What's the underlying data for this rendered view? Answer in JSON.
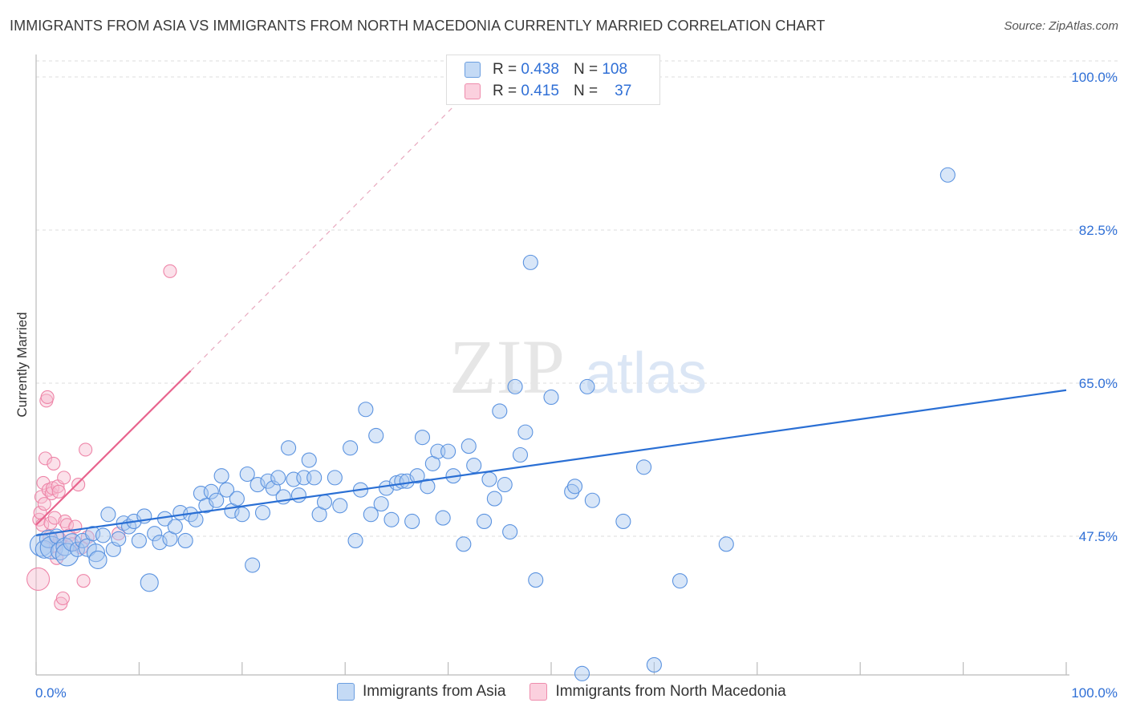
{
  "header": {
    "title": "IMMIGRANTS FROM ASIA VS IMMIGRANTS FROM NORTH MACEDONIA CURRENTLY MARRIED CORRELATION CHART",
    "source": "Source: ZipAtlas.com"
  },
  "watermark": {
    "zip": "ZIP",
    "atlas": "atlas"
  },
  "legend_top": {
    "rows": [
      {
        "r_label": "R =",
        "r_value": "0.438",
        "n_label": "N =",
        "n_value": "108"
      },
      {
        "r_label": "R =",
        "r_value": "0.415",
        "n_label": "N =",
        "n_value": "37"
      }
    ]
  },
  "colors": {
    "asia_fill": "#a9c8f0",
    "asia_stroke": "#5b93e0",
    "asia_line": "#2a6fd4",
    "mk_fill": "#f7bcd0",
    "mk_stroke": "#ee85a8",
    "mk_line": "#e8648e",
    "axis_value": "#2f6fd6",
    "grid": "#dddddd"
  },
  "chart_data": {
    "type": "scatter",
    "title": "IMMIGRANTS FROM ASIA VS IMMIGRANTS FROM NORTH MACEDONIA CURRENTLY MARRIED CORRELATION CHART",
    "xlabel": "",
    "ylabel": "Currently Married",
    "xlim": [
      0,
      100
    ],
    "ylim": [
      33,
      102
    ],
    "x_tick_labels": [
      "0.0%",
      "100.0%"
    ],
    "y_ticks": [
      47.5,
      65.0,
      82.5,
      100.0
    ],
    "y_tick_labels": [
      "47.5%",
      "65.0%",
      "82.5%",
      "100.0%"
    ],
    "grid": true,
    "legend_placement": "bottom-center",
    "series": [
      {
        "name": "Immigrants from Asia",
        "color": "#5b93e0",
        "r": 0.438,
        "n": 108,
        "trend": {
          "x": [
            0,
            100
          ],
          "y": [
            47.6,
            64.2
          ]
        },
        "points": [
          {
            "x": 0.5,
            "y": 46.5,
            "s": 3
          },
          {
            "x": 0.8,
            "y": 46.0,
            "s": 2
          },
          {
            "x": 1.2,
            "y": 47.2,
            "s": 2
          },
          {
            "x": 1.5,
            "y": 46.2,
            "s": 3
          },
          {
            "x": 2.0,
            "y": 47.5,
            "s": 1
          },
          {
            "x": 2.3,
            "y": 45.8,
            "s": 2
          },
          {
            "x": 2.8,
            "y": 46.3,
            "s": 2
          },
          {
            "x": 3.0,
            "y": 45.4,
            "s": 3
          },
          {
            "x": 3.5,
            "y": 46.8,
            "s": 2
          },
          {
            "x": 4.0,
            "y": 46.0,
            "s": 1
          },
          {
            "x": 4.5,
            "y": 47.0,
            "s": 1
          },
          {
            "x": 5.0,
            "y": 46.2,
            "s": 2
          },
          {
            "x": 5.5,
            "y": 47.8,
            "s": 1
          },
          {
            "x": 5.8,
            "y": 45.6,
            "s": 2
          },
          {
            "x": 6.0,
            "y": 44.8,
            "s": 2
          },
          {
            "x": 6.5,
            "y": 47.6,
            "s": 1
          },
          {
            "x": 7.0,
            "y": 50.0,
            "s": 1
          },
          {
            "x": 7.5,
            "y": 46.0,
            "s": 1
          },
          {
            "x": 8.0,
            "y": 47.2,
            "s": 1
          },
          {
            "x": 8.5,
            "y": 49.0,
            "s": 1
          },
          {
            "x": 9.0,
            "y": 48.6,
            "s": 1
          },
          {
            "x": 9.5,
            "y": 49.2,
            "s": 1
          },
          {
            "x": 10.0,
            "y": 47.0,
            "s": 1
          },
          {
            "x": 10.5,
            "y": 49.8,
            "s": 1
          },
          {
            "x": 11.0,
            "y": 42.2,
            "s": 2
          },
          {
            "x": 11.5,
            "y": 47.8,
            "s": 1
          },
          {
            "x": 12.0,
            "y": 46.8,
            "s": 1
          },
          {
            "x": 12.5,
            "y": 49.5,
            "s": 1
          },
          {
            "x": 13.0,
            "y": 47.2,
            "s": 1
          },
          {
            "x": 13.5,
            "y": 48.6,
            "s": 1
          },
          {
            "x": 14.0,
            "y": 50.2,
            "s": 1
          },
          {
            "x": 14.5,
            "y": 47.0,
            "s": 1
          },
          {
            "x": 15.0,
            "y": 50.0,
            "s": 1
          },
          {
            "x": 15.5,
            "y": 49.4,
            "s": 1
          },
          {
            "x": 16.0,
            "y": 52.4,
            "s": 1
          },
          {
            "x": 16.5,
            "y": 51.0,
            "s": 1
          },
          {
            "x": 17.0,
            "y": 52.6,
            "s": 1
          },
          {
            "x": 17.5,
            "y": 51.6,
            "s": 1
          },
          {
            "x": 18.0,
            "y": 54.4,
            "s": 1
          },
          {
            "x": 18.5,
            "y": 52.8,
            "s": 1
          },
          {
            "x": 19.0,
            "y": 50.4,
            "s": 1
          },
          {
            "x": 19.5,
            "y": 51.8,
            "s": 1
          },
          {
            "x": 20.0,
            "y": 50.0,
            "s": 1
          },
          {
            "x": 20.5,
            "y": 54.6,
            "s": 1
          },
          {
            "x": 21.0,
            "y": 44.2,
            "s": 1
          },
          {
            "x": 21.5,
            "y": 53.4,
            "s": 1
          },
          {
            "x": 22.0,
            "y": 50.2,
            "s": 1
          },
          {
            "x": 22.5,
            "y": 53.8,
            "s": 1
          },
          {
            "x": 23.0,
            "y": 53.0,
            "s": 1
          },
          {
            "x": 23.5,
            "y": 54.2,
            "s": 1
          },
          {
            "x": 24.0,
            "y": 52.0,
            "s": 1
          },
          {
            "x": 24.5,
            "y": 57.6,
            "s": 1
          },
          {
            "x": 25.0,
            "y": 54.0,
            "s": 1
          },
          {
            "x": 25.5,
            "y": 52.2,
            "s": 1
          },
          {
            "x": 26.0,
            "y": 54.2,
            "s": 1
          },
          {
            "x": 26.5,
            "y": 56.2,
            "s": 1
          },
          {
            "x": 27.0,
            "y": 54.2,
            "s": 1
          },
          {
            "x": 27.5,
            "y": 50.0,
            "s": 1
          },
          {
            "x": 28.0,
            "y": 51.4,
            "s": 1
          },
          {
            "x": 29.0,
            "y": 54.2,
            "s": 1
          },
          {
            "x": 29.5,
            "y": 51.0,
            "s": 1
          },
          {
            "x": 30.5,
            "y": 57.6,
            "s": 1
          },
          {
            "x": 31.0,
            "y": 47.0,
            "s": 1
          },
          {
            "x": 31.5,
            "y": 52.8,
            "s": 1
          },
          {
            "x": 32.0,
            "y": 62.0,
            "s": 1
          },
          {
            "x": 32.5,
            "y": 50.0,
            "s": 1
          },
          {
            "x": 33.0,
            "y": 59.0,
            "s": 1
          },
          {
            "x": 33.5,
            "y": 51.2,
            "s": 1
          },
          {
            "x": 34.0,
            "y": 53.0,
            "s": 1
          },
          {
            "x": 34.5,
            "y": 49.4,
            "s": 1
          },
          {
            "x": 35.0,
            "y": 53.6,
            "s": 1
          },
          {
            "x": 35.5,
            "y": 53.8,
            "s": 1
          },
          {
            "x": 36.0,
            "y": 53.8,
            "s": 1
          },
          {
            "x": 36.5,
            "y": 49.2,
            "s": 1
          },
          {
            "x": 37.0,
            "y": 54.4,
            "s": 1
          },
          {
            "x": 37.5,
            "y": 58.8,
            "s": 1
          },
          {
            "x": 38.0,
            "y": 53.2,
            "s": 1
          },
          {
            "x": 38.5,
            "y": 55.8,
            "s": 1
          },
          {
            "x": 39.0,
            "y": 57.2,
            "s": 1
          },
          {
            "x": 39.5,
            "y": 49.6,
            "s": 1
          },
          {
            "x": 40.0,
            "y": 57.2,
            "s": 1
          },
          {
            "x": 40.5,
            "y": 54.4,
            "s": 1
          },
          {
            "x": 41.5,
            "y": 46.6,
            "s": 1
          },
          {
            "x": 42.0,
            "y": 57.8,
            "s": 1
          },
          {
            "x": 42.5,
            "y": 55.6,
            "s": 1
          },
          {
            "x": 43.5,
            "y": 49.2,
            "s": 1
          },
          {
            "x": 44.0,
            "y": 54.0,
            "s": 1
          },
          {
            "x": 44.5,
            "y": 51.8,
            "s": 1
          },
          {
            "x": 45.0,
            "y": 61.8,
            "s": 1
          },
          {
            "x": 45.5,
            "y": 53.4,
            "s": 1
          },
          {
            "x": 46.0,
            "y": 48.0,
            "s": 1
          },
          {
            "x": 46.5,
            "y": 64.6,
            "s": 1
          },
          {
            "x": 47.0,
            "y": 56.8,
            "s": 1
          },
          {
            "x": 47.5,
            "y": 59.4,
            "s": 1
          },
          {
            "x": 48.0,
            "y": 78.8,
            "s": 1
          },
          {
            "x": 48.5,
            "y": 42.5,
            "s": 1
          },
          {
            "x": 50.0,
            "y": 63.4,
            "s": 1
          },
          {
            "x": 52.0,
            "y": 52.6,
            "s": 1
          },
          {
            "x": 52.3,
            "y": 53.2,
            "s": 1
          },
          {
            "x": 53.0,
            "y": 31.8,
            "s": 1
          },
          {
            "x": 53.5,
            "y": 64.6,
            "s": 1
          },
          {
            "x": 54.0,
            "y": 51.6,
            "s": 1
          },
          {
            "x": 57.0,
            "y": 49.2,
            "s": 1
          },
          {
            "x": 59.0,
            "y": 55.4,
            "s": 1
          },
          {
            "x": 60.0,
            "y": 32.8,
            "s": 1
          },
          {
            "x": 62.5,
            "y": 42.4,
            "s": 1
          },
          {
            "x": 67.0,
            "y": 46.6,
            "s": 1
          },
          {
            "x": 88.5,
            "y": 88.8,
            "s": 1
          }
        ]
      },
      {
        "name": "Immigrants from North Macedonia",
        "color": "#ee85a8",
        "r": 0.415,
        "n": 37,
        "trend": {
          "x": [
            0,
            15
          ],
          "y": [
            48.8,
            66.4
          ]
        },
        "trend_dashed": {
          "x": [
            15,
            40.5
          ],
          "y": [
            66.4,
            96.6
          ]
        },
        "points": [
          {
            "x": 0.2,
            "y": 42.6,
            "s": 3
          },
          {
            "x": 0.3,
            "y": 49.4,
            "s": 1
          },
          {
            "x": 0.4,
            "y": 50.2,
            "s": 1
          },
          {
            "x": 0.5,
            "y": 52.0,
            "s": 1
          },
          {
            "x": 0.6,
            "y": 48.8,
            "s": 1
          },
          {
            "x": 0.7,
            "y": 53.6,
            "s": 1
          },
          {
            "x": 0.8,
            "y": 51.2,
            "s": 1
          },
          {
            "x": 0.9,
            "y": 56.4,
            "s": 1
          },
          {
            "x": 1.0,
            "y": 63.0,
            "s": 1
          },
          {
            "x": 1.1,
            "y": 63.4,
            "s": 1
          },
          {
            "x": 1.2,
            "y": 52.8,
            "s": 1
          },
          {
            "x": 1.3,
            "y": 47.4,
            "s": 1
          },
          {
            "x": 1.4,
            "y": 49.0,
            "s": 1
          },
          {
            "x": 1.5,
            "y": 52.4,
            "s": 1
          },
          {
            "x": 1.6,
            "y": 53.0,
            "s": 1
          },
          {
            "x": 1.7,
            "y": 55.8,
            "s": 1
          },
          {
            "x": 1.8,
            "y": 49.6,
            "s": 1
          },
          {
            "x": 1.9,
            "y": 46.4,
            "s": 1
          },
          {
            "x": 2.0,
            "y": 45.0,
            "s": 1
          },
          {
            "x": 2.1,
            "y": 53.2,
            "s": 1
          },
          {
            "x": 2.2,
            "y": 52.6,
            "s": 1
          },
          {
            "x": 2.3,
            "y": 47.2,
            "s": 1
          },
          {
            "x": 2.4,
            "y": 39.8,
            "s": 1
          },
          {
            "x": 2.6,
            "y": 40.4,
            "s": 1
          },
          {
            "x": 2.8,
            "y": 49.2,
            "s": 1
          },
          {
            "x": 3.0,
            "y": 48.8,
            "s": 1
          },
          {
            "x": 3.2,
            "y": 47.6,
            "s": 1
          },
          {
            "x": 3.5,
            "y": 46.6,
            "s": 1
          },
          {
            "x": 3.8,
            "y": 48.6,
            "s": 1
          },
          {
            "x": 4.1,
            "y": 53.4,
            "s": 1
          },
          {
            "x": 4.4,
            "y": 46.2,
            "s": 1
          },
          {
            "x": 4.6,
            "y": 42.4,
            "s": 1
          },
          {
            "x": 4.8,
            "y": 57.4,
            "s": 1
          },
          {
            "x": 5.0,
            "y": 47.4,
            "s": 1
          },
          {
            "x": 8.0,
            "y": 47.8,
            "s": 1
          },
          {
            "x": 13.0,
            "y": 77.8,
            "s": 1
          },
          {
            "x": 2.7,
            "y": 54.2,
            "s": 1
          }
        ]
      }
    ]
  },
  "bottom_legend": {
    "items": [
      {
        "label": "Immigrants from Asia"
      },
      {
        "label": "Immigrants from North Macedonia"
      }
    ]
  }
}
